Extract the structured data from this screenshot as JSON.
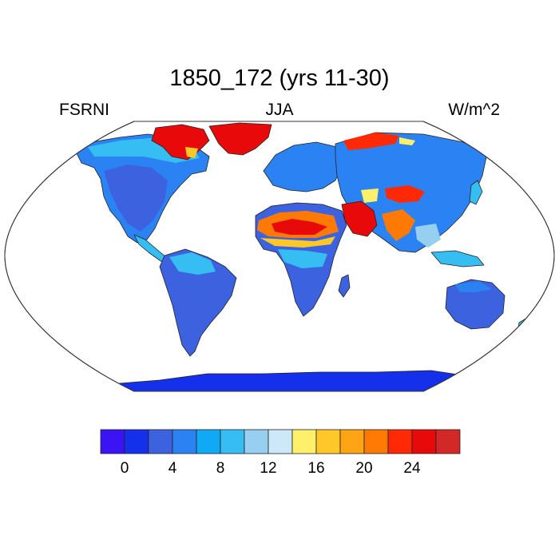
{
  "header": {
    "title": "1850_172 (yrs 11-30)",
    "variable": "FSRNI",
    "season": "JJA",
    "units": "W/m^2"
  },
  "colors": {
    "ocean": "#ffffff",
    "coastline": "#333333",
    "outline": "#333333"
  },
  "legend": {
    "bins": [
      "#3a14f5",
      "#1530ea",
      "#3c62e0",
      "#2b83f3",
      "#0fa9f5",
      "#36bdf2",
      "#96cff0",
      "#cde8f8",
      "#fff06b",
      "#ffc828",
      "#ffa414",
      "#ff7a05",
      "#ff2a05",
      "#e80a0a",
      "#d22828"
    ],
    "tick_labels": [
      "0",
      "4",
      "8",
      "12",
      "16",
      "20",
      "24"
    ]
  }
}
